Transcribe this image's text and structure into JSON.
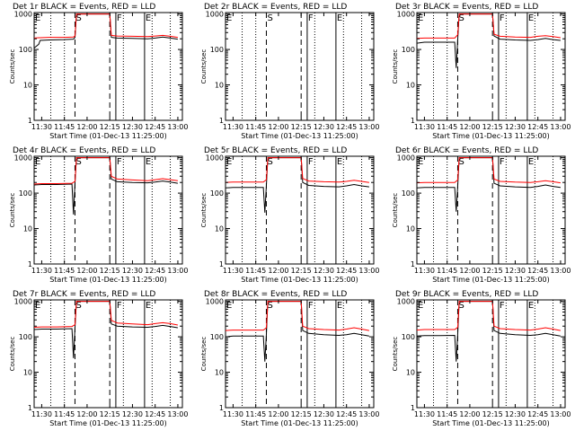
{
  "x_label": "Start Time (01-Dec-13 11:25:00)",
  "y_label": "Counts/sec",
  "x_ticks": [
    "11:30",
    "11:45",
    "12:00",
    "12:15",
    "12:30",
    "12:45",
    "13:00"
  ],
  "y_ticks": [
    "1",
    "10",
    "100",
    "1000"
  ],
  "markers": [
    {
      "label": "E",
      "x": "11:25"
    },
    {
      "label": "S",
      "x": "11:52"
    },
    {
      "label": "F",
      "x": "12:19"
    },
    {
      "label": "E",
      "x": "12:38"
    }
  ],
  "colors": {
    "events": "#000000",
    "lld": "#ff0000"
  },
  "chart_data": [
    {
      "type": "line",
      "title": "Det 1r BLACK = Events, RED = LLD",
      "x_unit": "time (HH:MM, 01-Dec-13)",
      "xlim": [
        "11:25",
        "13:03"
      ],
      "ylim": [
        1,
        1100
      ],
      "y_log": true,
      "vlines": {
        "dotted": [
          "11:36",
          "11:45",
          "12:24",
          "12:43",
          "12:55"
        ],
        "dashed": [
          "11:52",
          "12:15"
        ],
        "solid": [
          "12:19",
          "12:38"
        ]
      },
      "series": [
        {
          "color": "#000000",
          "x": [
            "11:25",
            "11:28",
            "11:29",
            "11:35",
            "11:45",
            "11:51",
            "11:52",
            "11:53",
            "12:15",
            "12:16",
            "12:20",
            "12:30",
            "12:40",
            "12:45",
            "12:50",
            "12:55",
            "13:00"
          ],
          "y": [
            110,
            140,
            180,
            185,
            190,
            195,
            220,
            1000,
            1000,
            220,
            210,
            205,
            200,
            210,
            225,
            210,
            195
          ]
        },
        {
          "color": "#ff0000",
          "x": [
            "11:25",
            "11:28",
            "11:29",
            "11:35",
            "11:45",
            "11:51",
            "11:52",
            "11:53",
            "12:15",
            "12:16",
            "12:20",
            "12:30",
            "12:40",
            "12:45",
            "12:50",
            "12:55",
            "13:00"
          ],
          "y": [
            210,
            215,
            215,
            220,
            220,
            225,
            240,
            1000,
            1000,
            250,
            240,
            235,
            230,
            240,
            250,
            235,
            220
          ]
        }
      ]
    },
    {
      "type": "line",
      "title": "Det 2r BLACK = Events, RED = LLD",
      "x_unit": "time (HH:MM, 01-Dec-13)",
      "xlim": [
        "11:25",
        "13:03"
      ],
      "ylim": [
        1,
        1100
      ],
      "y_log": true,
      "vlines": {
        "dotted": [
          "11:36",
          "11:45",
          "12:24",
          "12:43",
          "12:55"
        ],
        "dashed": [
          "11:52",
          "12:15"
        ],
        "solid": [
          "12:19",
          "12:38"
        ]
      },
      "series": []
    },
    {
      "type": "line",
      "title": "Det 3r BLACK = Events, RED = LLD",
      "x_unit": "time (HH:MM, 01-Dec-13)",
      "xlim": [
        "11:25",
        "13:03"
      ],
      "ylim": [
        1,
        1100
      ],
      "y_log": true,
      "vlines": {
        "dotted": [
          "11:36",
          "11:45",
          "12:24",
          "12:43",
          "12:55"
        ],
        "dashed": [
          "11:52",
          "12:15"
        ],
        "solid": [
          "12:19",
          "12:38"
        ]
      },
      "series": [
        {
          "color": "#000000",
          "x": [
            "11:25",
            "11:30",
            "11:40",
            "11:50",
            "11:51",
            "11:52",
            "11:53",
            "12:15",
            "12:16",
            "12:20",
            "12:30",
            "12:40",
            "12:45",
            "12:50",
            "12:55",
            "13:00"
          ],
          "y": [
            150,
            160,
            160,
            160,
            30,
            200,
            1000,
            1000,
            240,
            195,
            185,
            180,
            190,
            205,
            190,
            180
          ]
        },
        {
          "color": "#ff0000",
          "x": [
            "11:25",
            "11:30",
            "11:40",
            "11:50",
            "11:52",
            "11:53",
            "12:15",
            "12:16",
            "12:20",
            "12:30",
            "12:40",
            "12:45",
            "12:50",
            "12:55",
            "13:00"
          ],
          "y": [
            205,
            210,
            210,
            210,
            260,
            1000,
            1000,
            270,
            235,
            225,
            220,
            235,
            245,
            230,
            215
          ]
        }
      ]
    },
    {
      "type": "line",
      "title": "Det 4r BLACK = Events, RED = LLD",
      "x_unit": "time (HH:MM, 01-Dec-13)",
      "xlim": [
        "11:25",
        "13:03"
      ],
      "ylim": [
        1,
        1100
      ],
      "y_log": true,
      "vlines": {
        "dotted": [
          "11:36",
          "11:45",
          "12:24",
          "12:43",
          "12:55"
        ],
        "dashed": [
          "11:52",
          "12:15"
        ],
        "solid": [
          "12:19",
          "12:38"
        ]
      },
      "series": [
        {
          "color": "#000000",
          "x": [
            "11:25",
            "11:30",
            "11:40",
            "11:50",
            "11:51",
            "11:52",
            "11:53",
            "12:15",
            "12:16",
            "12:20",
            "12:30",
            "12:40",
            "12:45",
            "12:50",
            "12:55",
            "13:00"
          ],
          "y": [
            170,
            175,
            175,
            180,
            25,
            200,
            1000,
            1000,
            250,
            210,
            200,
            195,
            205,
            220,
            205,
            190
          ]
        },
        {
          "color": "#ff0000",
          "x": [
            "11:25",
            "11:30",
            "11:40",
            "11:50",
            "11:52",
            "11:53",
            "12:15",
            "12:16",
            "12:20",
            "12:30",
            "12:40",
            "12:45",
            "12:50",
            "12:55",
            "13:00"
          ],
          "y": [
            180,
            185,
            185,
            190,
            215,
            1000,
            1000,
            300,
            250,
            235,
            225,
            240,
            255,
            240,
            225
          ]
        }
      ]
    },
    {
      "type": "line",
      "title": "Det 5r BLACK = Events, RED = LLD",
      "x_unit": "time (HH:MM, 01-Dec-13)",
      "xlim": [
        "11:25",
        "13:03"
      ],
      "ylim": [
        1,
        1100
      ],
      "y_log": true,
      "vlines": {
        "dotted": [
          "11:36",
          "11:45",
          "12:24",
          "12:43",
          "12:55"
        ],
        "dashed": [
          "11:52",
          "12:15"
        ],
        "solid": [
          "12:19",
          "12:38"
        ]
      },
      "series": [
        {
          "color": "#000000",
          "x": [
            "11:25",
            "11:30",
            "11:40",
            "11:50",
            "11:51",
            "11:52",
            "11:53",
            "12:15",
            "12:16",
            "12:20",
            "12:30",
            "12:40",
            "12:45",
            "12:50",
            "12:55",
            "13:00"
          ],
          "y": [
            140,
            145,
            145,
            145,
            28,
            170,
            1000,
            1000,
            200,
            165,
            155,
            150,
            160,
            175,
            160,
            150
          ]
        },
        {
          "color": "#ff0000",
          "x": [
            "11:25",
            "11:30",
            "11:40",
            "11:50",
            "11:52",
            "11:53",
            "12:15",
            "12:16",
            "12:20",
            "12:30",
            "12:40",
            "12:45",
            "12:50",
            "12:55",
            "13:00"
          ],
          "y": [
            200,
            205,
            205,
            205,
            240,
            1000,
            1000,
            260,
            220,
            210,
            205,
            215,
            230,
            215,
            200
          ]
        }
      ]
    },
    {
      "type": "line",
      "title": "Det 6r BLACK = Events, RED = LLD",
      "x_unit": "time (HH:MM, 01-Dec-13)",
      "xlim": [
        "11:25",
        "13:03"
      ],
      "ylim": [
        1,
        1100
      ],
      "y_log": true,
      "vlines": {
        "dotted": [
          "11:36",
          "11:45",
          "12:24",
          "12:43",
          "12:55"
        ],
        "dashed": [
          "11:52",
          "12:15"
        ],
        "solid": [
          "12:19",
          "12:38"
        ]
      },
      "series": [
        {
          "color": "#000000",
          "x": [
            "11:25",
            "11:30",
            "11:40",
            "11:50",
            "11:51",
            "11:52",
            "11:53",
            "12:15",
            "12:16",
            "12:20",
            "12:30",
            "12:40",
            "12:45",
            "12:50",
            "12:55",
            "13:00"
          ],
          "y": [
            140,
            145,
            145,
            145,
            30,
            165,
            1000,
            1000,
            190,
            160,
            150,
            145,
            155,
            170,
            155,
            145
          ]
        },
        {
          "color": "#ff0000",
          "x": [
            "11:25",
            "11:30",
            "11:40",
            "11:50",
            "11:52",
            "11:53",
            "12:15",
            "12:16",
            "12:20",
            "12:30",
            "12:40",
            "12:45",
            "12:50",
            "12:55",
            "13:00"
          ],
          "y": [
            195,
            200,
            200,
            200,
            235,
            1000,
            1000,
            250,
            215,
            205,
            200,
            210,
            225,
            210,
            195
          ]
        }
      ]
    },
    {
      "type": "line",
      "title": "Det 7r BLACK = Events, RED = LLD",
      "x_unit": "time (HH:MM, 01-Dec-13)",
      "xlim": [
        "11:25",
        "13:03"
      ],
      "ylim": [
        1,
        1100
      ],
      "y_log": true,
      "vlines": {
        "dotted": [
          "11:36",
          "11:45",
          "12:24",
          "12:43",
          "12:55"
        ],
        "dashed": [
          "11:52",
          "12:15"
        ],
        "solid": [
          "12:19",
          "12:38"
        ]
      },
      "series": [
        {
          "color": "#000000",
          "x": [
            "11:25",
            "11:30",
            "11:40",
            "11:50",
            "11:51",
            "11:52",
            "11:53",
            "12:15",
            "12:16",
            "12:20",
            "12:30",
            "12:40",
            "12:45",
            "12:50",
            "12:55",
            "13:00"
          ],
          "y": [
            160,
            165,
            165,
            170,
            25,
            190,
            1000,
            1000,
            230,
            200,
            190,
            185,
            195,
            210,
            195,
            180
          ]
        },
        {
          "color": "#ff0000",
          "x": [
            "11:25",
            "11:30",
            "11:40",
            "11:50",
            "11:52",
            "11:53",
            "12:15",
            "12:16",
            "12:20",
            "12:30",
            "12:40",
            "12:45",
            "12:50",
            "12:55",
            "13:00"
          ],
          "y": [
            185,
            190,
            190,
            195,
            220,
            1000,
            1000,
            290,
            245,
            230,
            220,
            235,
            250,
            235,
            215
          ]
        }
      ]
    },
    {
      "type": "line",
      "title": "Det 8r BLACK = Events, RED = LLD",
      "x_unit": "time (HH:MM, 01-Dec-13)",
      "xlim": [
        "11:25",
        "13:03"
      ],
      "ylim": [
        1,
        1100
      ],
      "y_log": true,
      "vlines": {
        "dotted": [
          "11:36",
          "11:45",
          "12:24",
          "12:43",
          "12:55"
        ],
        "dashed": [
          "11:52",
          "12:15"
        ],
        "solid": [
          "12:19",
          "12:38"
        ]
      },
      "series": [
        {
          "color": "#000000",
          "x": [
            "11:25",
            "11:30",
            "11:40",
            "11:50",
            "11:51",
            "11:52",
            "11:53",
            "12:15",
            "12:16",
            "12:20",
            "12:30",
            "12:40",
            "12:45",
            "12:50",
            "12:55",
            "13:00"
          ],
          "y": [
            100,
            105,
            105,
            105,
            20,
            120,
            1000,
            1000,
            150,
            125,
            115,
            110,
            115,
            125,
            115,
            105
          ]
        },
        {
          "color": "#ff0000",
          "x": [
            "11:25",
            "11:30",
            "11:40",
            "11:50",
            "11:52",
            "11:53",
            "12:15",
            "12:16",
            "12:20",
            "12:30",
            "12:40",
            "12:45",
            "12:50",
            "12:55",
            "13:00"
          ],
          "y": [
            150,
            155,
            155,
            155,
            180,
            1000,
            1000,
            200,
            170,
            160,
            155,
            165,
            180,
            165,
            150
          ]
        }
      ]
    },
    {
      "type": "line",
      "title": "Det 9r BLACK = Events, RED = LLD",
      "x_unit": "time (HH:MM, 01-Dec-13)",
      "xlim": [
        "11:25",
        "13:03"
      ],
      "ylim": [
        1,
        1100
      ],
      "y_log": true,
      "vlines": {
        "dotted": [
          "11:36",
          "11:45",
          "12:24",
          "12:43",
          "12:55"
        ],
        "dashed": [
          "11:52",
          "12:15"
        ],
        "solid": [
          "12:19",
          "12:38"
        ]
      },
      "series": [
        {
          "color": "#000000",
          "x": [
            "11:25",
            "11:30",
            "11:40",
            "11:50",
            "11:51",
            "11:52",
            "11:53",
            "12:15",
            "12:16",
            "12:20",
            "12:30",
            "12:40",
            "12:45",
            "12:50",
            "12:55",
            "13:00"
          ],
          "y": [
            105,
            108,
            108,
            110,
            20,
            125,
            1000,
            1000,
            150,
            125,
            115,
            110,
            115,
            125,
            115,
            105
          ]
        },
        {
          "color": "#ff0000",
          "x": [
            "11:25",
            "11:30",
            "11:40",
            "11:50",
            "11:52",
            "11:53",
            "12:15",
            "12:16",
            "12:20",
            "12:30",
            "12:40",
            "12:45",
            "12:50",
            "12:55",
            "13:00"
          ],
          "y": [
            155,
            160,
            160,
            160,
            185,
            1000,
            1000,
            200,
            170,
            160,
            155,
            165,
            180,
            165,
            150
          ]
        }
      ]
    }
  ]
}
